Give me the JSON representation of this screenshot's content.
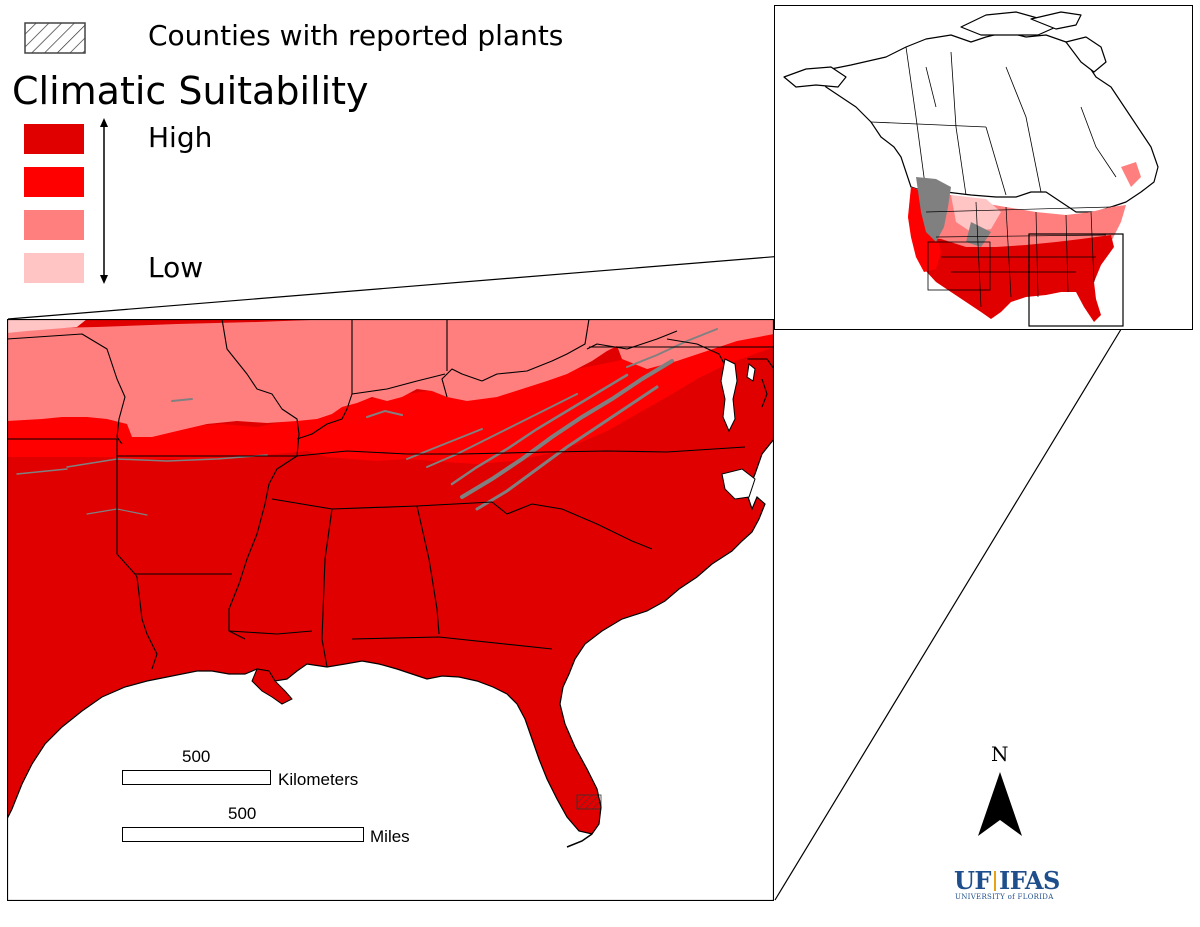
{
  "legend": {
    "hatch_label": "Counties with reported plants",
    "title": "Climatic Suitability",
    "high_label": "High",
    "low_label": "Low",
    "classes": [
      {
        "level": "highest",
        "color": "#e00000"
      },
      {
        "level": "high",
        "color": "#ff0000"
      },
      {
        "level": "medium",
        "color": "#ff7f7f"
      },
      {
        "level": "low",
        "color": "#ffc4c4"
      }
    ],
    "unsuitable_color": "#808080"
  },
  "scale_bar": {
    "km_value": "500",
    "km_unit": "Kilometers",
    "mi_value": "500",
    "mi_unit": "Miles"
  },
  "north_arrow": {
    "label": "N"
  },
  "logo": {
    "main_left": "UF",
    "main_right": "IFAS",
    "sub": "UNIVERSITY of FLORIDA",
    "color": "#1f4e8c"
  }
}
